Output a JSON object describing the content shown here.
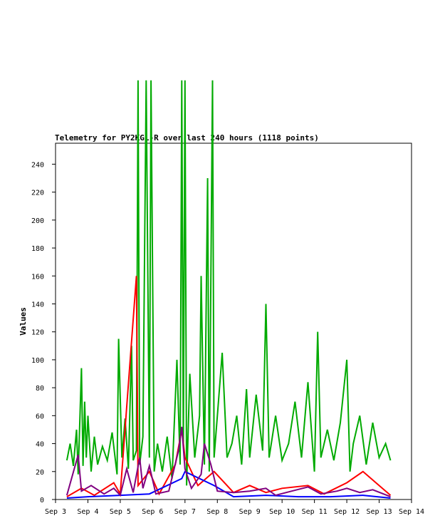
{
  "chart_data": {
    "type": "line",
    "title": "Telemetry for PY2KGL-R over last 240 hours (1118 points)",
    "xlabel": "",
    "ylabel": "Values",
    "x_ticks": [
      "Sep 3",
      "Sep 4",
      "Sep 5",
      "Sep 6",
      "Sep 7",
      "Sep 8",
      "Sep 9",
      "Sep 10",
      "Sep 11",
      "Sep 12",
      "Sep 13",
      "Sep 14"
    ],
    "y_ticks": [
      0,
      20,
      40,
      60,
      80,
      100,
      120,
      140,
      160,
      180,
      200,
      220,
      240
    ],
    "ylim": [
      0,
      255
    ],
    "xlim_days": [
      3,
      14
    ],
    "grid": false,
    "legend": "none",
    "series": [
      {
        "color": "#00aa00",
        "points": [
          [
            3.35,
            28
          ],
          [
            3.45,
            40
          ],
          [
            3.55,
            24
          ],
          [
            3.65,
            50
          ],
          [
            3.7,
            18
          ],
          [
            3.8,
            94
          ],
          [
            3.85,
            24
          ],
          [
            3.9,
            70
          ],
          [
            3.95,
            30
          ],
          [
            4.0,
            60
          ],
          [
            4.1,
            20
          ],
          [
            4.2,
            45
          ],
          [
            4.3,
            25
          ],
          [
            4.45,
            38
          ],
          [
            4.6,
            28
          ],
          [
            4.75,
            48
          ],
          [
            4.9,
            18
          ],
          [
            4.95,
            115
          ],
          [
            5.05,
            30
          ],
          [
            5.15,
            58
          ],
          [
            5.25,
            22
          ],
          [
            5.35,
            110
          ],
          [
            5.4,
            28
          ],
          [
            5.5,
            35
          ],
          [
            5.55,
            300
          ],
          [
            5.6,
            25
          ],
          [
            5.7,
            45
          ],
          [
            5.8,
            300
          ],
          [
            5.9,
            30
          ],
          [
            5.95,
            300
          ],
          [
            6.05,
            20
          ],
          [
            6.15,
            40
          ],
          [
            6.3,
            20
          ],
          [
            6.45,
            45
          ],
          [
            6.6,
            15
          ],
          [
            6.75,
            100
          ],
          [
            6.85,
            25
          ],
          [
            6.9,
            300
          ],
          [
            6.95,
            40
          ],
          [
            7.0,
            300
          ],
          [
            7.05,
            10
          ],
          [
            7.15,
            90
          ],
          [
            7.3,
            30
          ],
          [
            7.45,
            60
          ],
          [
            7.5,
            160
          ],
          [
            7.6,
            25
          ],
          [
            7.7,
            230
          ],
          [
            7.75,
            20
          ],
          [
            7.85,
            300
          ],
          [
            7.9,
            30
          ],
          [
            8.0,
            60
          ],
          [
            8.15,
            105
          ],
          [
            8.3,
            30
          ],
          [
            8.45,
            40
          ],
          [
            8.6,
            60
          ],
          [
            8.75,
            25
          ],
          [
            8.9,
            79
          ],
          [
            9.0,
            30
          ],
          [
            9.2,
            75
          ],
          [
            9.4,
            35
          ],
          [
            9.5,
            140
          ],
          [
            9.6,
            30
          ],
          [
            9.8,
            60
          ],
          [
            10.0,
            28
          ],
          [
            10.2,
            40
          ],
          [
            10.4,
            70
          ],
          [
            10.6,
            30
          ],
          [
            10.8,
            84
          ],
          [
            11.0,
            20
          ],
          [
            11.1,
            120
          ],
          [
            11.2,
            30
          ],
          [
            11.4,
            50
          ],
          [
            11.6,
            28
          ],
          [
            11.8,
            55
          ],
          [
            12.0,
            100
          ],
          [
            12.1,
            20
          ],
          [
            12.2,
            40
          ],
          [
            12.4,
            60
          ],
          [
            12.6,
            25
          ],
          [
            12.8,
            55
          ],
          [
            13.0,
            30
          ],
          [
            13.2,
            40
          ],
          [
            13.35,
            28
          ]
        ]
      },
      {
        "color": "#ff0000",
        "points": [
          [
            3.35,
            2
          ],
          [
            3.8,
            8
          ],
          [
            4.2,
            3
          ],
          [
            4.8,
            12
          ],
          [
            5.0,
            4
          ],
          [
            5.5,
            160
          ],
          [
            5.55,
            10
          ],
          [
            5.9,
            20
          ],
          [
            6.2,
            4
          ],
          [
            6.7,
            25
          ],
          [
            6.9,
            50
          ],
          [
            7.0,
            30
          ],
          [
            7.4,
            10
          ],
          [
            7.9,
            20
          ],
          [
            8.5,
            5
          ],
          [
            9.0,
            10
          ],
          [
            9.5,
            5
          ],
          [
            10.0,
            8
          ],
          [
            10.8,
            10
          ],
          [
            11.3,
            4
          ],
          [
            12.0,
            12
          ],
          [
            12.5,
            20
          ],
          [
            13.0,
            10
          ],
          [
            13.35,
            3
          ]
        ]
      },
      {
        "color": "#0000ff",
        "points": [
          [
            3.35,
            1
          ],
          [
            4.0,
            2
          ],
          [
            5.0,
            3
          ],
          [
            5.9,
            4
          ],
          [
            6.9,
            15
          ],
          [
            7.0,
            20
          ],
          [
            7.9,
            10
          ],
          [
            8.5,
            2
          ],
          [
            9.5,
            3
          ],
          [
            10.5,
            2
          ],
          [
            11.5,
            2
          ],
          [
            12.5,
            3
          ],
          [
            13.35,
            1
          ]
        ]
      },
      {
        "color": "#800080",
        "points": [
          [
            3.35,
            3
          ],
          [
            3.7,
            32
          ],
          [
            3.8,
            6
          ],
          [
            4.1,
            10
          ],
          [
            4.5,
            4
          ],
          [
            4.8,
            8
          ],
          [
            5.0,
            3
          ],
          [
            5.2,
            22
          ],
          [
            5.4,
            5
          ],
          [
            5.6,
            30
          ],
          [
            5.7,
            8
          ],
          [
            5.9,
            24
          ],
          [
            6.1,
            4
          ],
          [
            6.5,
            6
          ],
          [
            6.8,
            35
          ],
          [
            6.9,
            52
          ],
          [
            7.0,
            22
          ],
          [
            7.2,
            8
          ],
          [
            7.5,
            18
          ],
          [
            7.6,
            40
          ],
          [
            7.8,
            25
          ],
          [
            8.0,
            6
          ],
          [
            8.5,
            5
          ],
          [
            9.0,
            6
          ],
          [
            9.5,
            8
          ],
          [
            9.8,
            3
          ],
          [
            10.3,
            6
          ],
          [
            10.8,
            9
          ],
          [
            11.2,
            4
          ],
          [
            11.7,
            6
          ],
          [
            12.0,
            8
          ],
          [
            12.4,
            5
          ],
          [
            12.8,
            7
          ],
          [
            13.35,
            2
          ]
        ]
      }
    ]
  }
}
